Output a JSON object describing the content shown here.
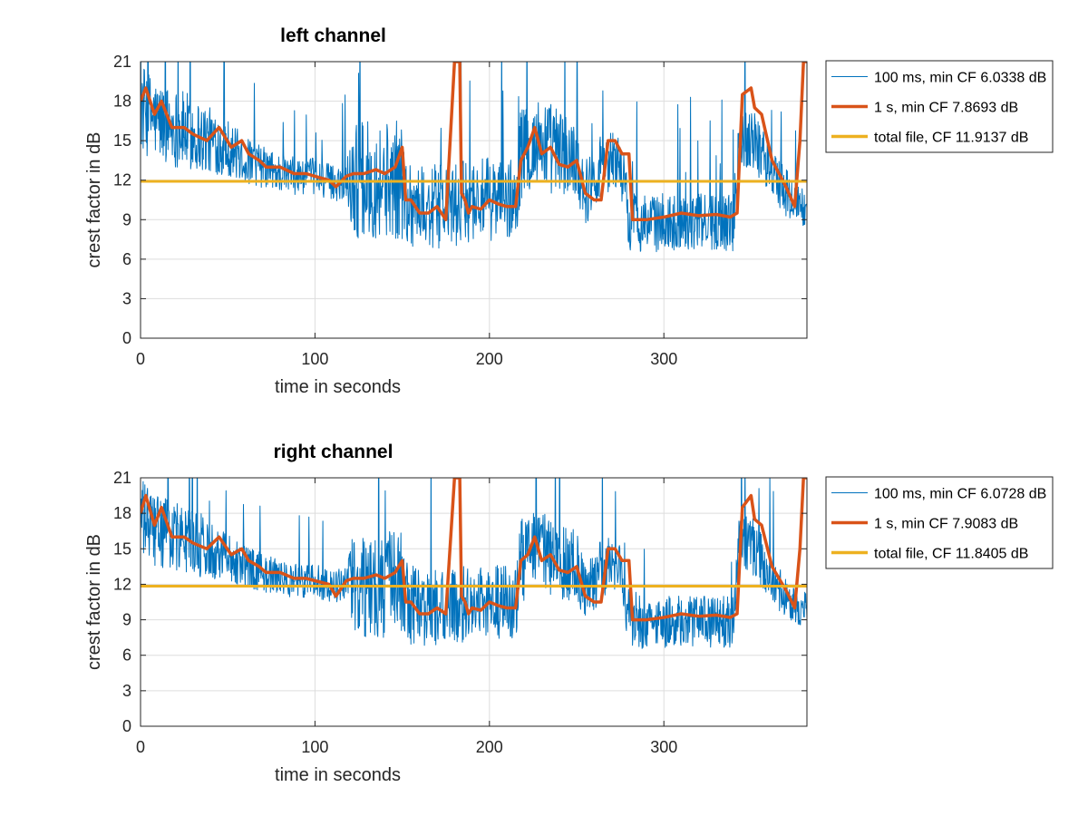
{
  "colors": {
    "series_100ms": "#0072bd",
    "series_1s": "#d95319",
    "series_total": "#edb120",
    "grid": "#dddddd",
    "axis": "#262626"
  },
  "chart_data": [
    {
      "type": "line",
      "title": "left channel",
      "xlabel": "time in seconds",
      "ylabel": "crest factor in dB",
      "xlim": [
        0,
        382
      ],
      "ylim": [
        0,
        21
      ],
      "xticks": [
        0,
        100,
        200,
        300
      ],
      "yticks": [
        0,
        3,
        6,
        9,
        12,
        15,
        18,
        21
      ],
      "grid": true,
      "legend_position": "outside-right-top",
      "series": [
        {
          "name": "100 ms, min CF 6.0338 dB",
          "kind": "noisy",
          "x": [
            0,
            10,
            20,
            30,
            40,
            50,
            60,
            70,
            80,
            90,
            100,
            110,
            118,
            122,
            130,
            140,
            150,
            152,
            160,
            170,
            178,
            183,
            186,
            190,
            200,
            210,
            215,
            218,
            225,
            230,
            240,
            250,
            255,
            265,
            275,
            280,
            282,
            290,
            300,
            310,
            320,
            330,
            340,
            343,
            350,
            360,
            370,
            378,
            382
          ],
          "center": [
            17.5,
            16.5,
            16,
            15.5,
            15,
            14.5,
            13.5,
            13,
            12.5,
            12.3,
            12.3,
            11.8,
            12,
            12,
            12,
            12,
            12,
            10.5,
            10,
            10,
            10,
            10,
            10.5,
            10.5,
            10.5,
            10.5,
            10.5,
            14,
            14.5,
            15,
            14,
            13.5,
            11,
            13.5,
            13.5,
            9,
            9,
            8.7,
            8.8,
            8.8,
            8.8,
            8.8,
            8.8,
            15,
            15.5,
            13,
            11,
            10,
            10
          ],
          "spread": [
            3.5,
            3,
            3,
            3,
            2.5,
            2.2,
            1.8,
            1.6,
            1.5,
            1.4,
            1.4,
            1.4,
            1.6,
            4.5,
            4.5,
            4.5,
            4.5,
            3.5,
            3.2,
            3.2,
            3.2,
            3.2,
            3.2,
            3.2,
            3.2,
            3.2,
            3.2,
            3.5,
            3.5,
            3.5,
            3.5,
            3,
            2.5,
            2.5,
            2.2,
            2.5,
            2.5,
            2.2,
            2.2,
            2.2,
            2.2,
            2.2,
            2.2,
            2.5,
            2.5,
            2,
            2,
            1.5,
            1.5
          ]
        },
        {
          "name": "1 s, min CF 7.8693 dB",
          "x": [
            0,
            3,
            8,
            12,
            18,
            25,
            30,
            38,
            45,
            52,
            58,
            62,
            68,
            72,
            80,
            88,
            95,
            100,
            108,
            112,
            118,
            122,
            128,
            135,
            140,
            146,
            150,
            152,
            155,
            160,
            165,
            170,
            175,
            180,
            183,
            184,
            186,
            188,
            190,
            195,
            200,
            205,
            210,
            215,
            218,
            222,
            226,
            230,
            235,
            240,
            245,
            250,
            255,
            260,
            264,
            268,
            272,
            276,
            280,
            282,
            290,
            300,
            310,
            320,
            330,
            338,
            342,
            345,
            350,
            352,
            356,
            362,
            370,
            375,
            378,
            380,
            382
          ],
          "y": [
            18,
            19,
            17,
            18,
            16,
            16,
            15.5,
            15,
            16,
            14.5,
            15,
            14,
            13.5,
            13,
            13,
            12.5,
            12.5,
            12.3,
            12,
            11.5,
            12.3,
            12.5,
            12.5,
            12.8,
            12.5,
            13,
            14.5,
            10.5,
            10.5,
            9.5,
            9.5,
            10,
            9,
            21,
            21,
            11,
            10.5,
            9.5,
            10,
            9.8,
            10.5,
            10.2,
            10,
            10,
            13.5,
            14.5,
            16,
            14,
            14.5,
            13.2,
            13,
            13.5,
            11,
            10.5,
            10.5,
            15,
            15,
            14,
            14,
            9,
            9,
            9.2,
            9.5,
            9.3,
            9.4,
            9.2,
            9.5,
            18.5,
            19,
            17.5,
            17,
            13.5,
            11.5,
            10,
            15,
            21,
            21
          ]
        },
        {
          "name": "total file, CF 11.9137 dB",
          "x": [
            0,
            382
          ],
          "y": [
            11.9137,
            11.9137
          ]
        }
      ]
    },
    {
      "type": "line",
      "title": "right channel",
      "xlabel": "time in seconds",
      "ylabel": "crest factor in dB",
      "xlim": [
        0,
        382
      ],
      "ylim": [
        0,
        21
      ],
      "xticks": [
        0,
        100,
        200,
        300
      ],
      "yticks": [
        0,
        3,
        6,
        9,
        12,
        15,
        18,
        21
      ],
      "grid": true,
      "legend_position": "outside-right-top",
      "series": [
        {
          "name": "100 ms, min CF 6.0728 dB",
          "kind": "noisy",
          "x": [
            0,
            10,
            20,
            30,
            40,
            50,
            60,
            70,
            80,
            90,
            100,
            110,
            118,
            122,
            130,
            140,
            150,
            152,
            160,
            170,
            178,
            183,
            186,
            190,
            200,
            210,
            215,
            218,
            225,
            230,
            240,
            250,
            255,
            265,
            275,
            280,
            282,
            290,
            300,
            310,
            320,
            330,
            340,
            343,
            350,
            360,
            370,
            378,
            382
          ],
          "center": [
            17.5,
            16.5,
            16,
            15.5,
            15,
            14.5,
            13.5,
            13,
            12.5,
            12.3,
            12.3,
            11.8,
            12,
            12,
            12,
            12,
            12,
            10.5,
            10,
            10,
            10,
            10,
            10.5,
            10.5,
            10.5,
            10.5,
            10.5,
            14,
            14.5,
            15,
            14,
            13.5,
            11,
            13.5,
            13.5,
            9,
            9,
            8.7,
            8.8,
            8.8,
            8.8,
            8.8,
            8.8,
            15,
            15.5,
            13,
            11,
            10,
            10
          ],
          "spread": [
            3.5,
            3,
            3,
            3,
            2.5,
            2.2,
            1.8,
            1.6,
            1.5,
            1.4,
            1.4,
            1.4,
            1.6,
            4.5,
            4.5,
            4.5,
            4.5,
            3.5,
            3.2,
            3.2,
            3.2,
            3.2,
            3.2,
            3.2,
            3.2,
            3.2,
            3.2,
            3.5,
            3.5,
            3.5,
            3.5,
            3,
            2.5,
            2.5,
            2.2,
            2.5,
            2.5,
            2.2,
            2.2,
            2.2,
            2.2,
            2.2,
            2.2,
            2.5,
            2.5,
            2,
            2,
            1.5,
            1.5
          ]
        },
        {
          "name": "1 s, min CF 7.9083 dB",
          "x": [
            0,
            3,
            8,
            12,
            18,
            25,
            30,
            38,
            45,
            52,
            58,
            62,
            68,
            72,
            80,
            88,
            95,
            100,
            108,
            112,
            118,
            122,
            128,
            135,
            140,
            146,
            150,
            152,
            155,
            160,
            165,
            170,
            175,
            180,
            183,
            184,
            186,
            188,
            190,
            195,
            200,
            205,
            210,
            215,
            218,
            222,
            226,
            230,
            235,
            240,
            245,
            250,
            255,
            260,
            264,
            268,
            272,
            276,
            280,
            282,
            290,
            300,
            310,
            320,
            330,
            338,
            342,
            345,
            350,
            352,
            356,
            362,
            370,
            375,
            378,
            380,
            382
          ],
          "y": [
            18,
            19.5,
            17,
            18.5,
            16,
            16,
            15.5,
            15,
            16,
            14.5,
            15,
            14,
            13.5,
            13,
            13,
            12.5,
            12.5,
            12.3,
            12,
            11,
            12.3,
            12.5,
            12.5,
            12.8,
            12.5,
            13,
            14,
            10.5,
            10.5,
            9.5,
            9.5,
            10,
            9.5,
            21,
            21,
            11,
            10.5,
            9.5,
            10,
            9.8,
            10.5,
            10.2,
            10,
            10,
            14,
            14.5,
            16,
            14,
            14.5,
            13.2,
            13,
            13.5,
            11,
            10.5,
            10.5,
            15,
            15,
            14,
            14,
            9,
            9,
            9.2,
            9.5,
            9.3,
            9.4,
            9.2,
            9.5,
            18.5,
            19.5,
            17.5,
            17,
            13.5,
            11.5,
            10,
            15,
            21,
            21
          ]
        },
        {
          "name": "total file, CF 11.8405 dB",
          "x": [
            0,
            382
          ],
          "y": [
            11.8405,
            11.8405
          ]
        }
      ]
    }
  ]
}
